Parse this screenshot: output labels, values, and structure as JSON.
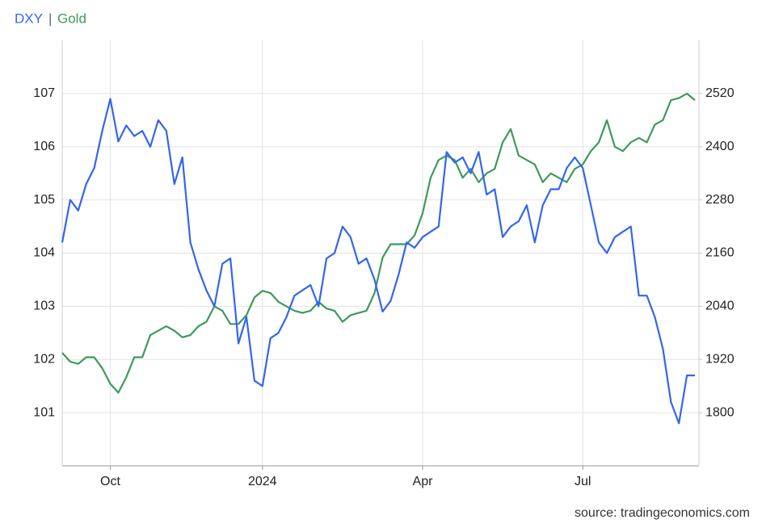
{
  "chart_data": {
    "type": "line",
    "legend_separator": "|",
    "source": "source: tradingeconomics.com",
    "categories": [
      null,
      null,
      null,
      null,
      null,
      null,
      "Oct",
      null,
      null,
      null,
      null,
      null,
      null,
      null,
      null,
      null,
      null,
      null,
      null,
      null,
      null,
      null,
      null,
      null,
      null,
      "2024",
      null,
      null,
      null,
      null,
      null,
      null,
      null,
      null,
      null,
      null,
      null,
      null,
      null,
      null,
      null,
      null,
      null,
      null,
      null,
      "Apr",
      null,
      null,
      null,
      null,
      null,
      null,
      null,
      null,
      null,
      null,
      null,
      null,
      null,
      null,
      null,
      null,
      null,
      null,
      null,
      "Jul",
      null,
      null,
      null,
      null,
      null,
      null,
      null,
      null,
      null,
      null,
      null,
      null,
      null,
      null
    ],
    "series": [
      {
        "name": "DXY",
        "color": "#3366ee",
        "axis": "y",
        "values": [
          104.2,
          105.0,
          104.8,
          105.3,
          105.6,
          106.3,
          106.9,
          106.1,
          106.4,
          106.2,
          106.3,
          106.0,
          106.5,
          106.3,
          105.3,
          105.8,
          104.2,
          103.7,
          103.3,
          103.0,
          103.8,
          103.9,
          102.3,
          102.8,
          101.6,
          101.5,
          102.4,
          102.5,
          102.8,
          103.2,
          103.3,
          103.4,
          103.0,
          103.9,
          104.0,
          104.5,
          104.3,
          103.8,
          103.9,
          103.5,
          102.9,
          103.1,
          103.6,
          104.2,
          104.1,
          104.3,
          104.4,
          104.5,
          105.9,
          105.7,
          105.8,
          105.5,
          105.9,
          105.1,
          105.2,
          104.3,
          104.5,
          104.6,
          104.9,
          104.2,
          104.9,
          105.2,
          105.2,
          105.6,
          105.8,
          105.6,
          104.9,
          104.2,
          104.0,
          104.3,
          104.4,
          104.5,
          103.2,
          103.2,
          102.8,
          102.2,
          101.2,
          100.8,
          101.7,
          101.7
        ]
      },
      {
        "name": "Gold",
        "color": "#3d9a5a",
        "axis": "y2",
        "values": [
          1935,
          1915,
          1910,
          1925,
          1925,
          1900,
          1865,
          1845,
          1880,
          1925,
          1925,
          1975,
          1985,
          1995,
          1985,
          1970,
          1975,
          1995,
          2005,
          2040,
          2030,
          2000,
          2000,
          2020,
          2060,
          2075,
          2070,
          2050,
          2040,
          2030,
          2025,
          2030,
          2050,
          2035,
          2030,
          2005,
          2020,
          2025,
          2030,
          2070,
          2150,
          2180,
          2180,
          2180,
          2200,
          2250,
          2330,
          2370,
          2380,
          2370,
          2330,
          2350,
          2320,
          2340,
          2350,
          2410,
          2440,
          2380,
          2370,
          2360,
          2320,
          2340,
          2330,
          2320,
          2350,
          2360,
          2390,
          2410,
          2460,
          2400,
          2390,
          2410,
          2420,
          2410,
          2450,
          2460,
          2505,
          2510,
          2520,
          2505
        ]
      }
    ],
    "ylim": [
      100,
      108
    ],
    "yticks": [
      101,
      102,
      103,
      104,
      105,
      106,
      107
    ],
    "y2lim": [
      1680,
      2640
    ],
    "y2ticks": [
      1800,
      1920,
      2040,
      2160,
      2280,
      2400,
      2520
    ],
    "grid": true
  }
}
